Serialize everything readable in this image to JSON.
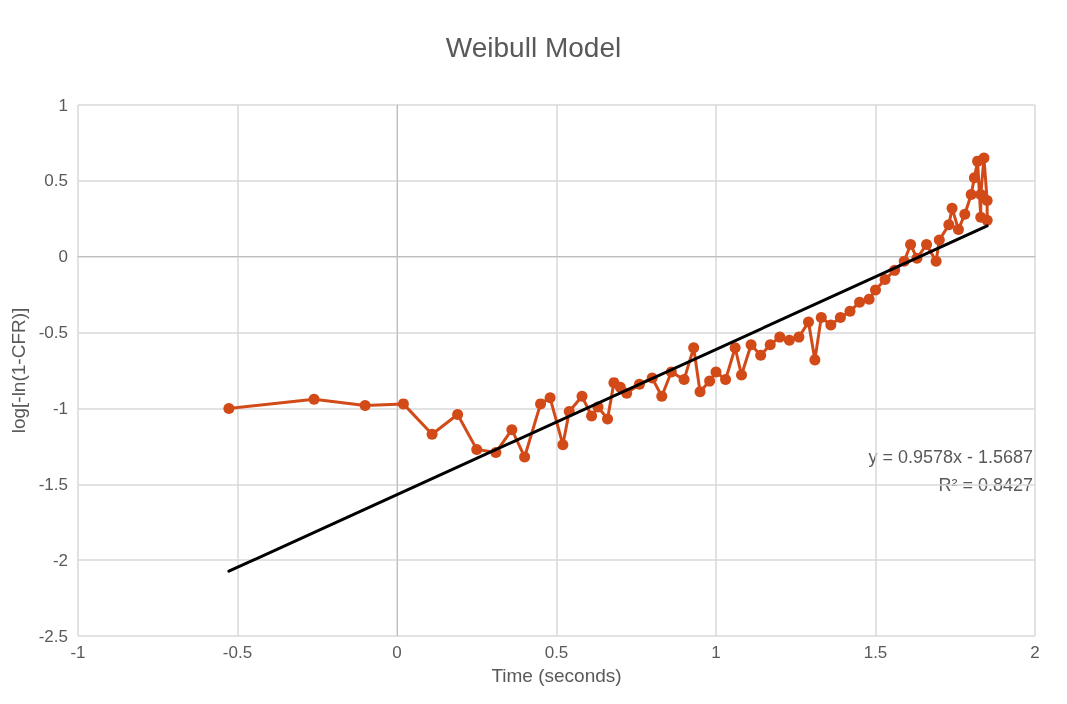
{
  "chart_data": {
    "type": "line",
    "title": "Weibull Model",
    "xlabel": "Time (seconds)",
    "ylabel": "log[-ln(1-CFR)]",
    "xlim": [
      -1,
      2
    ],
    "xticks": [
      -1,
      -0.5,
      0,
      0.5,
      1,
      1.5,
      2
    ],
    "ylim": [
      -2.5,
      1
    ],
    "yticks": [
      -2.5,
      -2,
      -1.5,
      -1,
      -0.5,
      0,
      0.5,
      1
    ],
    "grid": true,
    "marker": "circle",
    "line_style": "solid",
    "annotations": [
      "y = 0.9578x - 1.5687",
      "R² = 0.8427"
    ],
    "series": [
      {
        "color": "#d34a19",
        "x": [
          -0.527,
          -0.26,
          -0.1,
          0.02,
          0.11,
          0.19,
          0.25,
          0.31,
          0.36,
          0.4,
          0.45,
          0.48,
          0.52,
          0.54,
          0.58,
          0.61,
          0.63,
          0.66,
          0.68,
          0.7,
          0.72,
          0.76,
          0.8,
          0.83,
          0.86,
          0.9,
          0.93,
          0.95,
          0.98,
          1.0,
          1.03,
          1.06,
          1.08,
          1.11,
          1.14,
          1.17,
          1.2,
          1.23,
          1.26,
          1.29,
          1.31,
          1.33,
          1.36,
          1.39,
          1.42,
          1.45,
          1.48,
          1.5,
          1.53,
          1.56,
          1.59,
          1.61,
          1.63,
          1.66,
          1.69,
          1.7,
          1.73,
          1.74,
          1.76,
          1.78,
          1.8,
          1.81,
          1.82,
          1.83,
          1.83,
          1.84,
          1.85,
          1.85
        ],
        "values": [
          -1.0,
          -0.94,
          -0.98,
          -0.97,
          -1.17,
          -1.04,
          -1.27,
          -1.29,
          -1.14,
          -1.32,
          -0.97,
          -0.93,
          -1.24,
          -1.02,
          -0.92,
          -1.05,
          -0.99,
          -1.07,
          -0.83,
          -0.86,
          -0.9,
          -0.84,
          -0.8,
          -0.92,
          -0.76,
          -0.81,
          -0.6,
          -0.89,
          -0.82,
          -0.76,
          -0.81,
          -0.6,
          -0.78,
          -0.58,
          -0.65,
          -0.58,
          -0.53,
          -0.55,
          -0.53,
          -0.43,
          -0.68,
          -0.4,
          -0.45,
          -0.4,
          -0.36,
          -0.3,
          -0.28,
          -0.22,
          -0.15,
          -0.09,
          -0.03,
          0.08,
          -0.01,
          0.08,
          -0.03,
          0.11,
          0.21,
          0.32,
          0.18,
          0.28,
          0.41,
          0.52,
          0.63,
          0.26,
          0.41,
          0.65,
          0.37,
          0.24
        ]
      },
      {
        "type": "line",
        "color": "#000000",
        "marker": "none",
        "x": [
          -0.527,
          1.85
        ],
        "values": [
          -2.073,
          0.203
        ]
      }
    ]
  }
}
